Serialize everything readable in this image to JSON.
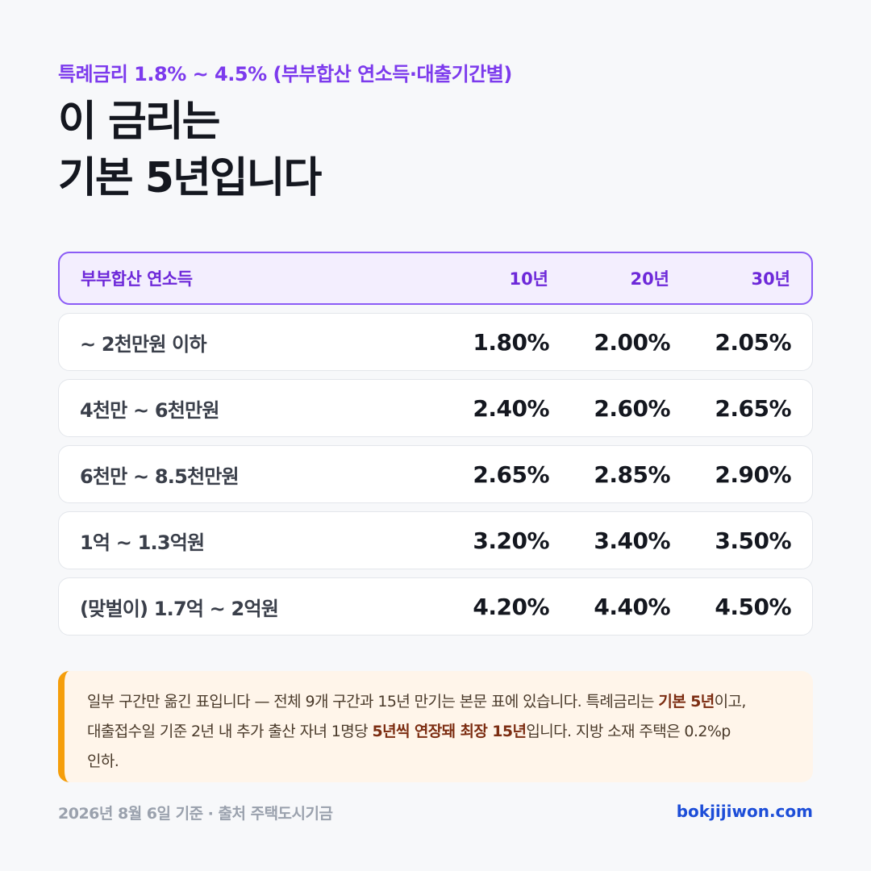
{
  "header": {
    "subtitle": "특례금리 1.8% ~ 4.5% (부부합산 연소득·대출기간별)",
    "title_line1": "이 금리는",
    "title_line2": "기본 5년입니다"
  },
  "table": {
    "headers": [
      "부부합산 연소득",
      "10년",
      "20년",
      "30년"
    ],
    "rows": [
      {
        "income": "~ 2천만원 이하",
        "y10": "1.80%",
        "y20": "2.00%",
        "y30": "2.05%"
      },
      {
        "income": "4천만 ~ 6천만원",
        "y10": "2.40%",
        "y20": "2.60%",
        "y30": "2.65%"
      },
      {
        "income": "6천만 ~ 8.5천만원",
        "y10": "2.65%",
        "y20": "2.85%",
        "y30": "2.90%"
      },
      {
        "income": "1억 ~ 1.3억원",
        "y10": "3.20%",
        "y20": "3.40%",
        "y30": "3.50%"
      },
      {
        "income": "(맞벌이) 1.7억 ~ 2억원",
        "y10": "4.20%",
        "y20": "4.40%",
        "y30": "4.50%"
      }
    ]
  },
  "note": {
    "p1": "일부 구간만 옮긴 표입니다 — 전체 9개 구간과 15년 만기는 본문 표에 있습니다. 특례금리는 ",
    "b1": "기본 5년",
    "p2": "이고,",
    "p3": "대출접수일 기준 2년 내 추가 출산 자녀 1명당 ",
    "b2": "5년씩 연장돼 최장 15년",
    "p4": "입니다. 지방 소재 주택은 0.2%p",
    "p5": "인하."
  },
  "footer": {
    "source": "2026년 8월 6일 기준 · 출처 주택도시기금",
    "site": "bokjijiwon.com"
  },
  "colors": {
    "accent": "#7c3aed",
    "note_bar": "#f59e0b",
    "link": "#1d4ed8"
  }
}
